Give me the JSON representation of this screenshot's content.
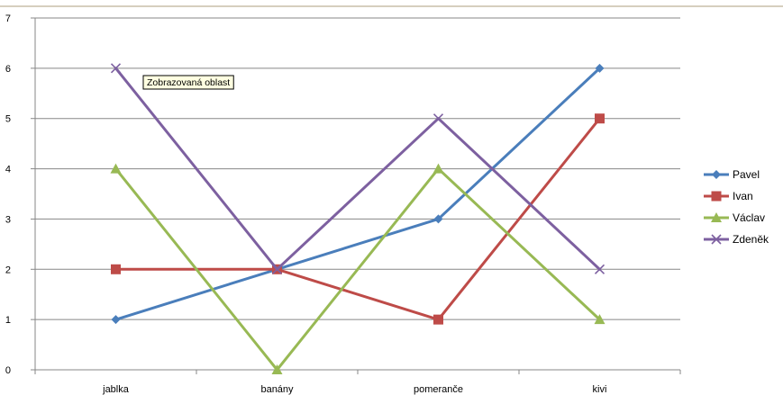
{
  "tooltip": {
    "text": "Zobrazovaná oblast"
  },
  "colors": {
    "frame": "#c8bfa8",
    "grid": "#878787",
    "axis": "#878787",
    "tooltip_bg": "#ffffe1",
    "tooltip_border": "#000000"
  },
  "chart_data": {
    "type": "line",
    "title": "",
    "xlabel": "",
    "ylabel": "",
    "categories": [
      "jablka",
      "banány",
      "pomeranče",
      "kivi"
    ],
    "ylim": [
      0,
      7
    ],
    "yticks": [
      "0",
      "1",
      "2",
      "3",
      "4",
      "5",
      "6",
      "7"
    ],
    "grid": true,
    "legend_position": "right",
    "series": [
      {
        "name": "Pavel",
        "values": [
          1,
          2,
          3,
          6
        ],
        "color": "#4a7ebb",
        "marker": "diamond"
      },
      {
        "name": "Ivan",
        "values": [
          2,
          2,
          1,
          5
        ],
        "color": "#be4b48",
        "marker": "square"
      },
      {
        "name": "Václav",
        "values": [
          4,
          0,
          4,
          1
        ],
        "color": "#98b954",
        "marker": "triangle"
      },
      {
        "name": "Zdeněk",
        "values": [
          6,
          2,
          5,
          2
        ],
        "color": "#7d60a0",
        "marker": "x"
      }
    ]
  }
}
